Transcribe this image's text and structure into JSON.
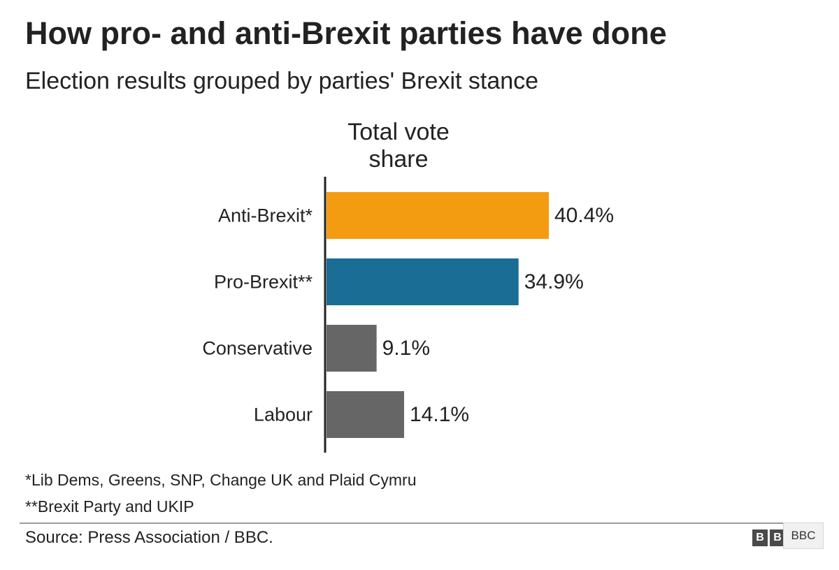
{
  "title": "How pro- and anti-Brexit parties have done",
  "subtitle": "Election results grouped by parties' Brexit stance",
  "chart_data": {
    "type": "bar",
    "orientation": "horizontal",
    "title": "How pro- and anti-Brexit parties have done",
    "subtitle": "Election results grouped by parties' Brexit stance",
    "series_title": "Total vote share",
    "categories": [
      "Anti-Brexit*",
      "Pro-Brexit**",
      "Conservative",
      "Labour"
    ],
    "values": [
      40.4,
      34.9,
      9.1,
      14.1
    ],
    "value_labels": [
      "40.4%",
      "34.9%",
      "9.1%",
      "14.1%"
    ],
    "colors": [
      "#f39c12",
      "#1a6d94",
      "#666666",
      "#666666"
    ],
    "unit": "%",
    "xlim": [
      0,
      45
    ],
    "grid": false,
    "legend": "none"
  },
  "footnotes": [
    "*Lib Dems, Greens, SNP, Change UK and Plaid Cymru",
    "**Brexit Party and UKIP"
  ],
  "source": "Source: Press Association / BBC.",
  "logo": {
    "letters": [
      "B",
      "B",
      "C"
    ],
    "overlay_text": "BBC"
  }
}
